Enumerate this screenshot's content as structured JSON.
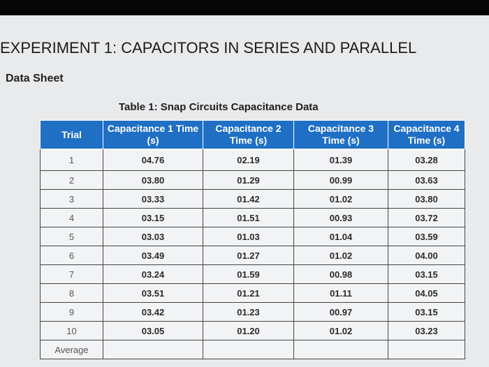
{
  "header": {
    "title": "EXPERIMENT 1: CAPACITORS IN SERIES AND PARALLEL",
    "subtitle": "Data Sheet"
  },
  "table": {
    "caption": "Table 1: Snap Circuits Capacitance Data",
    "columns": [
      "Trial",
      "Capacitance 1 Time (s)",
      "Capacitance 2 Time (s)",
      "Capacitance 3 Time (s)",
      "Capacitance 4 Time (s)"
    ],
    "rows": [
      [
        "1",
        "04.76",
        "02.19",
        "01.39",
        "03.28"
      ],
      [
        "2",
        "03.80",
        "01.29",
        "00.99",
        "03.63"
      ],
      [
        "3",
        "03.33",
        "01.42",
        "01.02",
        "03.80"
      ],
      [
        "4",
        "03.15",
        "01.51",
        "00.93",
        "03.72"
      ],
      [
        "5",
        "03.03",
        "01.03",
        "01.04",
        "03.59"
      ],
      [
        "6",
        "03.49",
        "01.27",
        "01.02",
        "04.00"
      ],
      [
        "7",
        "03.24",
        "01.59",
        "00.98",
        "03.15"
      ],
      [
        "8",
        "03.51",
        "01.21",
        "01.11",
        "04.05"
      ],
      [
        "9",
        "03.42",
        "01.23",
        "00.97",
        "03.15"
      ],
      [
        "10",
        "03.05",
        "01.20",
        "01.02",
        "03.23"
      ]
    ],
    "average_label": "Average"
  }
}
